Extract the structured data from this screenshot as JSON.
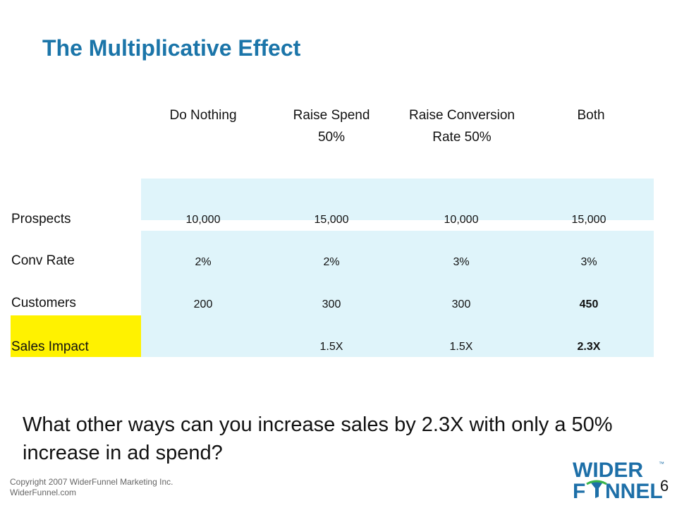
{
  "slide": {
    "title": "The Multiplicative Effect",
    "question": "What other ways can you increase sales by 2.3X with only a 50% increase in ad spend?",
    "copyright_line1": "Copyright 2007 WiderFunnel Marketing Inc.",
    "copyright_line2": "WiderFunnel.com",
    "page_number": "6"
  },
  "logo": {
    "word1": "WIDER",
    "word2_start": "F",
    "word2_end": "NNEL",
    "tm": "™"
  },
  "table": {
    "headers": [
      "Do Nothing",
      "Raise Spend 50%",
      "Raise Conversion Rate 50%",
      "Both"
    ],
    "rows": [
      {
        "label": "Prospects",
        "values": [
          "10,000",
          "15,000",
          "10,000",
          "15,000"
        ]
      },
      {
        "label": "Conv Rate",
        "values": [
          "2%",
          "2%",
          "3%",
          "3%"
        ]
      },
      {
        "label": "Customers",
        "values": [
          "200",
          "300",
          "300",
          "450"
        ]
      },
      {
        "label": "Sales Impact",
        "values": [
          "",
          "1.5X",
          "1.5X",
          "2.3X"
        ]
      }
    ]
  },
  "colors": {
    "title": "#1b75a9",
    "band": "#dff4fa",
    "highlight": "#fff200",
    "logo_blue": "#1d6fa8",
    "logo_green": "#39b54a"
  }
}
